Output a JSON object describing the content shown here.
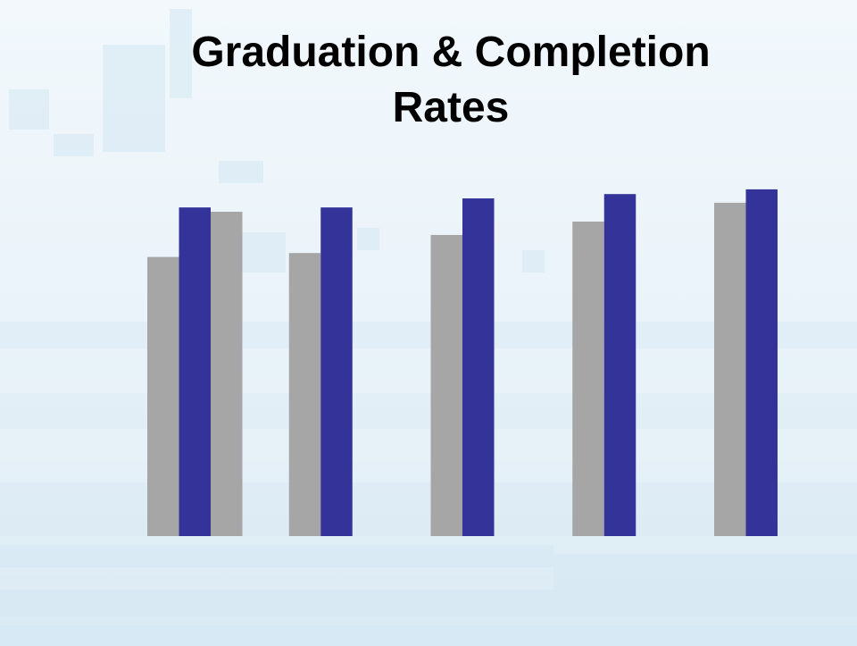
{
  "chart_data": {
    "type": "bar",
    "title": "Graduation & Completion Rates",
    "categories": [
      null,
      null,
      null,
      null,
      null
    ],
    "series": [
      {
        "color": "#a6a6a6",
        "values": [
          71,
          72,
          76.6,
          80,
          84.8
        ]
      },
      {
        "color": "#333399",
        "values": [
          83.6,
          83.6,
          85.9,
          87,
          88.2
        ]
      },
      {
        "color": "#a6a6a6",
        "values": [
          82.5,
          null,
          null,
          null,
          null
        ]
      }
    ],
    "ylim": [
      0,
      100
    ]
  }
}
